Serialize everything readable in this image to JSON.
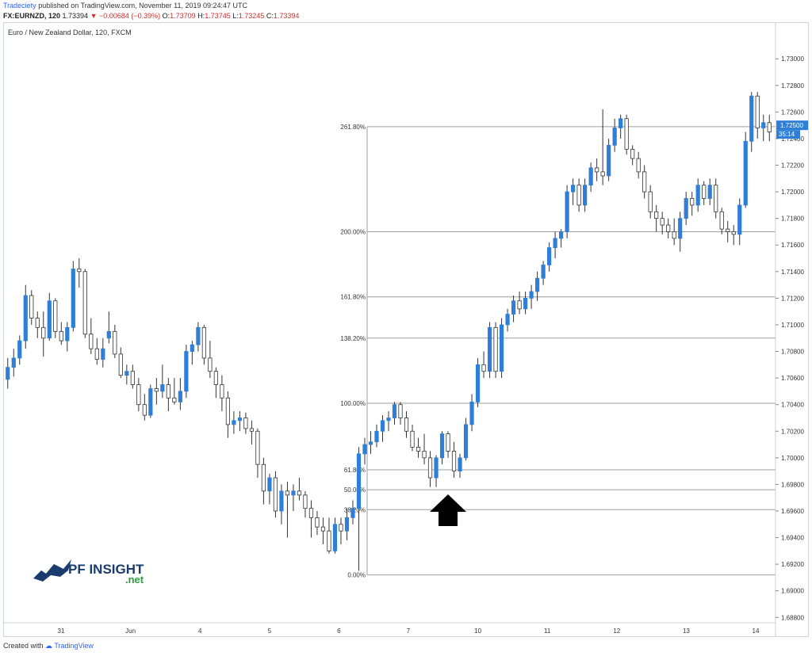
{
  "header": {
    "publisher": "Tradeciety",
    "published_text": "published on TradingView.com, November 11, 2019 09:24:47 UTC",
    "symbol": "FX:EURNZD, 120",
    "last": "1.73394",
    "change": "−0.00684 (−0.39%)",
    "o_label": "O:",
    "o_val": "1.73709",
    "h_label": "H:",
    "h_val": "1.73745",
    "l_label": "L:",
    "l_val": "1.73245",
    "c_label": "C:",
    "c_val": "1.73394"
  },
  "instrument": "Euro / New Zealand Dollar, 120, FXCM",
  "footer": {
    "created_with": "Created with",
    "brand": "TradingView"
  },
  "logo": {
    "text": "PF INSIGHT",
    "sub": ".net"
  },
  "colors": {
    "up": "#2f7ed8",
    "down": "#ffffff",
    "wick": "#333333",
    "fib": "#9e9e9e",
    "price_tag": "#2f7ed8"
  },
  "chart_data": {
    "type": "candlestick",
    "y_axis": {
      "ticks": [
        "1.73000",
        "1.72800",
        "1.72600",
        "1.72400",
        "1.72200",
        "1.72000",
        "1.71800",
        "1.71600",
        "1.71400",
        "1.71200",
        "1.71000",
        "1.70800",
        "1.70600",
        "1.70400",
        "1.70200",
        "1.70000",
        "1.69800",
        "1.69600",
        "1.69400",
        "1.69200",
        "1.69000",
        "1.68800"
      ],
      "range": [
        1.6876,
        1.7318
      ]
    },
    "x_axis": {
      "ticks": [
        "31",
        "Jun",
        "4",
        "5",
        "6",
        "7",
        "10",
        "11",
        "12",
        "13",
        "14"
      ]
    },
    "price_tag": {
      "value": "1.72500",
      "countdown": "35:14"
    },
    "fib_levels": [
      {
        "label": "0.00%",
        "value": 1.6912
      },
      {
        "label": "38.20%",
        "value": 1.6961
      },
      {
        "label": "50.00%",
        "value": 1.6976
      },
      {
        "label": "61.80%",
        "value": 1.6991
      },
      {
        "label": "100.00%",
        "value": 1.7041
      },
      {
        "label": "138.20%",
        "value": 1.709
      },
      {
        "label": "161.80%",
        "value": 1.7121
      },
      {
        "label": "200.00%",
        "value": 1.717
      },
      {
        "label": "261.80%",
        "value": 1.7249
      }
    ],
    "candles": [
      [
        1.7059,
        1.7075,
        1.7052,
        1.7068
      ],
      [
        1.7068,
        1.7082,
        1.7061,
        1.7075
      ],
      [
        1.7075,
        1.7092,
        1.707,
        1.7088
      ],
      [
        1.7088,
        1.713,
        1.7082,
        1.7122
      ],
      [
        1.7122,
        1.7126,
        1.71,
        1.7105
      ],
      [
        1.7105,
        1.711,
        1.709,
        1.7098
      ],
      [
        1.7098,
        1.711,
        1.7076,
        1.709
      ],
      [
        1.709,
        1.7124,
        1.7088,
        1.7118
      ],
      [
        1.7118,
        1.712,
        1.709,
        1.7095
      ],
      [
        1.7095,
        1.7102,
        1.7085,
        1.7088
      ],
      [
        1.7088,
        1.7102,
        1.708,
        1.7098
      ],
      [
        1.7098,
        1.7148,
        1.7095,
        1.7142
      ],
      [
        1.7142,
        1.715,
        1.7128,
        1.714
      ],
      [
        1.714,
        1.7142,
        1.709,
        1.7093
      ],
      [
        1.7093,
        1.7105,
        1.7078,
        1.7082
      ],
      [
        1.7082,
        1.709,
        1.707,
        1.7074
      ],
      [
        1.7074,
        1.709,
        1.7068,
        1.7082
      ],
      [
        1.709,
        1.711,
        1.7086,
        1.7095
      ],
      [
        1.7095,
        1.71,
        1.7075,
        1.7078
      ],
      [
        1.7078,
        1.7083,
        1.706,
        1.7062
      ],
      [
        1.7062,
        1.707,
        1.7055,
        1.7065
      ],
      [
        1.7065,
        1.707,
        1.7052,
        1.7055
      ],
      [
        1.7055,
        1.706,
        1.7035,
        1.704
      ],
      [
        1.704,
        1.7048,
        1.7028,
        1.7032
      ],
      [
        1.7032,
        1.7055,
        1.703,
        1.7052
      ],
      [
        1.7052,
        1.706,
        1.704,
        1.705
      ],
      [
        1.705,
        1.707,
        1.7045,
        1.7055
      ],
      [
        1.7055,
        1.706,
        1.7035,
        1.7045
      ],
      [
        1.7045,
        1.706,
        1.704,
        1.7042
      ],
      [
        1.7042,
        1.706,
        1.7036,
        1.705
      ],
      [
        1.705,
        1.7085,
        1.7045,
        1.708
      ],
      [
        1.708,
        1.7088,
        1.707,
        1.7085
      ],
      [
        1.7085,
        1.7102,
        1.708,
        1.7098
      ],
      [
        1.7098,
        1.71,
        1.707,
        1.7075
      ],
      [
        1.7075,
        1.7088,
        1.706,
        1.7065
      ],
      [
        1.7065,
        1.7068,
        1.7045,
        1.7055
      ],
      [
        1.7055,
        1.7062,
        1.7035,
        1.7045
      ],
      [
        1.7045,
        1.705,
        1.7015,
        1.7025
      ],
      [
        1.7025,
        1.7035,
        1.7018,
        1.7028
      ],
      [
        1.7028,
        1.7035,
        1.702,
        1.703
      ],
      [
        1.703,
        1.7034,
        1.7018,
        1.7022
      ],
      [
        1.7022,
        1.7028,
        1.701,
        1.702
      ],
      [
        1.702,
        1.7022,
        1.6985,
        1.6995
      ],
      [
        1.6995,
        1.7,
        1.6965,
        1.6975
      ],
      [
        1.6975,
        1.6988,
        1.6965,
        1.6985
      ],
      [
        1.6985,
        1.699,
        1.6955,
        1.696
      ],
      [
        1.696,
        1.698,
        1.695,
        1.6975
      ],
      [
        1.6975,
        1.6982,
        1.694,
        1.6972
      ],
      [
        1.6972,
        1.698,
        1.696,
        1.6975
      ],
      [
        1.6975,
        1.6985,
        1.6968,
        1.6972
      ],
      [
        1.6972,
        1.6975,
        1.6955,
        1.6962
      ],
      [
        1.6962,
        1.6968,
        1.694,
        1.6955
      ],
      [
        1.6955,
        1.696,
        1.6942,
        1.6948
      ],
      [
        1.6948,
        1.6955,
        1.6935,
        1.6945
      ],
      [
        1.6945,
        1.6955,
        1.6928,
        1.693
      ],
      [
        1.693,
        1.6955,
        1.6928,
        1.695
      ],
      [
        1.695,
        1.6955,
        1.6935,
        1.6945
      ],
      [
        1.6945,
        1.6962,
        1.6938,
        1.6955
      ],
      [
        1.6955,
        1.6968,
        1.695,
        1.6962
      ],
      [
        1.6962,
        1.7008,
        1.6915,
        1.7003
      ],
      [
        1.7003,
        1.7015,
        1.6995,
        1.701
      ],
      [
        1.701,
        1.702,
        1.7003,
        1.7012
      ],
      [
        1.7012,
        1.7025,
        1.7008,
        1.702
      ],
      [
        1.702,
        1.7032,
        1.7012,
        1.7028
      ],
      [
        1.7028,
        1.7035,
        1.702,
        1.703
      ],
      [
        1.703,
        1.7042,
        1.7025,
        1.704
      ],
      [
        1.704,
        1.7042,
        1.7025,
        1.703
      ],
      [
        1.703,
        1.7035,
        1.7015,
        1.702
      ],
      [
        1.702,
        1.7025,
        1.7005,
        1.7008
      ],
      [
        1.7008,
        1.7015,
        1.7,
        1.7005
      ],
      [
        1.7005,
        1.7018,
        1.6995,
        1.7
      ],
      [
        1.7,
        1.7005,
        1.6978,
        1.6985
      ],
      [
        1.6985,
        1.7002,
        1.6978,
        1.7
      ],
      [
        1.7,
        1.702,
        1.6995,
        1.7018
      ],
      [
        1.7018,
        1.702,
        1.7,
        1.7005
      ],
      [
        1.7005,
        1.7012,
        1.6985,
        1.699
      ],
      [
        1.699,
        1.7003,
        1.6985,
        1.7
      ],
      [
        1.7,
        1.703,
        1.6998,
        1.7025
      ],
      [
        1.7025,
        1.7048,
        1.702,
        1.7042
      ],
      [
        1.7042,
        1.7075,
        1.7038,
        1.707
      ],
      [
        1.707,
        1.708,
        1.706,
        1.7065
      ],
      [
        1.7065,
        1.7102,
        1.706,
        1.7098
      ],
      [
        1.7098,
        1.7102,
        1.706,
        1.7065
      ],
      [
        1.7065,
        1.7105,
        1.706,
        1.71
      ],
      [
        1.71,
        1.7112,
        1.7095,
        1.7108
      ],
      [
        1.7108,
        1.7122,
        1.7102,
        1.7118
      ],
      [
        1.7118,
        1.7125,
        1.7108,
        1.7112
      ],
      [
        1.7112,
        1.7125,
        1.7108,
        1.712
      ],
      [
        1.712,
        1.713,
        1.7112,
        1.7125
      ],
      [
        1.7125,
        1.714,
        1.7118,
        1.7135
      ],
      [
        1.7135,
        1.7148,
        1.713,
        1.7145
      ],
      [
        1.7145,
        1.7162,
        1.714,
        1.7158
      ],
      [
        1.7158,
        1.717,
        1.715,
        1.7165
      ],
      [
        1.7165,
        1.7172,
        1.7158,
        1.717
      ],
      [
        1.717,
        1.7205,
        1.7165,
        1.72
      ],
      [
        1.72,
        1.721,
        1.719,
        1.7205
      ],
      [
        1.7205,
        1.721,
        1.7185,
        1.719
      ],
      [
        1.719,
        1.721,
        1.7185,
        1.7205
      ],
      [
        1.7205,
        1.7222,
        1.72,
        1.7218
      ],
      [
        1.7218,
        1.7225,
        1.7208,
        1.7215
      ],
      [
        1.7215,
        1.7262,
        1.7205,
        1.7212
      ],
      [
        1.7212,
        1.724,
        1.7208,
        1.7235
      ],
      [
        1.7235,
        1.7255,
        1.723,
        1.7248
      ],
      [
        1.7248,
        1.7258,
        1.724,
        1.7255
      ],
      [
        1.7255,
        1.7258,
        1.7228,
        1.7232
      ],
      [
        1.7232,
        1.7235,
        1.722,
        1.7225
      ],
      [
        1.7225,
        1.723,
        1.721,
        1.7215
      ],
      [
        1.7215,
        1.722,
        1.7195,
        1.72
      ],
      [
        1.72,
        1.7205,
        1.718,
        1.7185
      ],
      [
        1.7185,
        1.719,
        1.717,
        1.718
      ],
      [
        1.718,
        1.7185,
        1.7168,
        1.7175
      ],
      [
        1.7175,
        1.718,
        1.7165,
        1.717
      ],
      [
        1.717,
        1.718,
        1.716,
        1.7165
      ],
      [
        1.7165,
        1.7185,
        1.7155,
        1.718
      ],
      [
        1.718,
        1.72,
        1.7175,
        1.7195
      ],
      [
        1.7195,
        1.72,
        1.7182,
        1.719
      ],
      [
        1.719,
        1.721,
        1.7185,
        1.7205
      ],
      [
        1.7205,
        1.7208,
        1.719,
        1.7195
      ],
      [
        1.7195,
        1.721,
        1.719,
        1.7205
      ],
      [
        1.7205,
        1.721,
        1.718,
        1.7185
      ],
      [
        1.7185,
        1.7188,
        1.7168,
        1.7172
      ],
      [
        1.7172,
        1.7178,
        1.7162,
        1.717
      ],
      [
        1.717,
        1.7175,
        1.716,
        1.7168
      ],
      [
        1.7168,
        1.7195,
        1.716,
        1.719
      ],
      [
        1.719,
        1.7245,
        1.7188,
        1.7238
      ],
      [
        1.7238,
        1.7275,
        1.723,
        1.7272
      ],
      [
        1.7272,
        1.7275,
        1.724,
        1.7248
      ],
      [
        1.7248,
        1.7258,
        1.7238,
        1.7252
      ],
      [
        1.7252,
        1.7258,
        1.7238,
        1.7245
      ]
    ]
  }
}
